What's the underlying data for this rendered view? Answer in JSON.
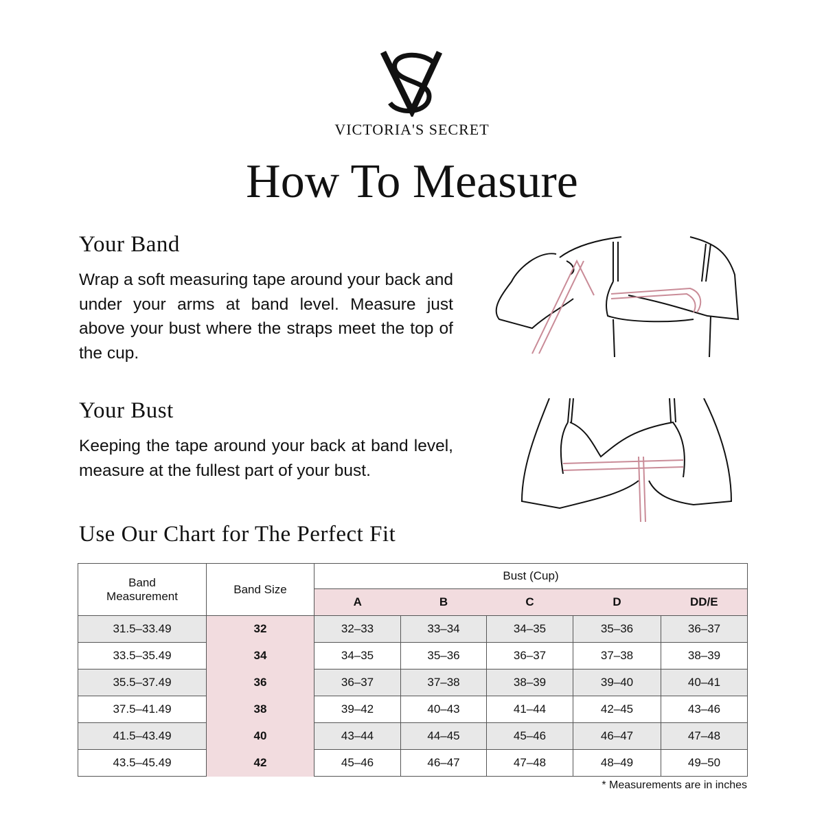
{
  "brand": {
    "name": "VICTORIA'S SECRET",
    "monogram": "VS",
    "colors": {
      "pink": "#f2dcdf",
      "gray": "#e8e8e8",
      "tape": "#c98b97"
    }
  },
  "title": "How To Measure",
  "band": {
    "heading": "Your Band",
    "text": "Wrap a soft measuring tape around your back and under your arms at band level.  Measure just above your bust where the straps meet the top of the cup."
  },
  "bust": {
    "heading": "Your Bust",
    "text": "Keeping the tape around your back at band level, measure at the fullest part of your bust."
  },
  "chart_heading": "Use Our Chart for The Perfect Fit",
  "table": {
    "col_band_measurement": "Band Measurement",
    "col_band_size": "Band Size",
    "col_bust": "Bust (Cup)",
    "cups": [
      "A",
      "B",
      "C",
      "D",
      "DD/E"
    ],
    "rows": [
      {
        "measurement": "31.5–33.49",
        "size": "32",
        "values": [
          "32–33",
          "33–34",
          "34–35",
          "35–36",
          "36–37"
        ]
      },
      {
        "measurement": "33.5–35.49",
        "size": "34",
        "values": [
          "34–35",
          "35–36",
          "36–37",
          "37–38",
          "38–39"
        ]
      },
      {
        "measurement": "35.5–37.49",
        "size": "36",
        "values": [
          "36–37",
          "37–38",
          "38–39",
          "39–40",
          "40–41"
        ]
      },
      {
        "measurement": "37.5–41.49",
        "size": "38",
        "values": [
          "39–42",
          "40–43",
          "41–44",
          "42–45",
          "43–46"
        ]
      },
      {
        "measurement": "41.5–43.49",
        "size": "40",
        "values": [
          "43–44",
          "44–45",
          "45–46",
          "46–47",
          "47–48"
        ]
      },
      {
        "measurement": "43.5–45.49",
        "size": "42",
        "values": [
          "45–46",
          "46–47",
          "47–48",
          "48–49",
          "49–50"
        ]
      }
    ]
  },
  "note": "* Measurements are in inches"
}
